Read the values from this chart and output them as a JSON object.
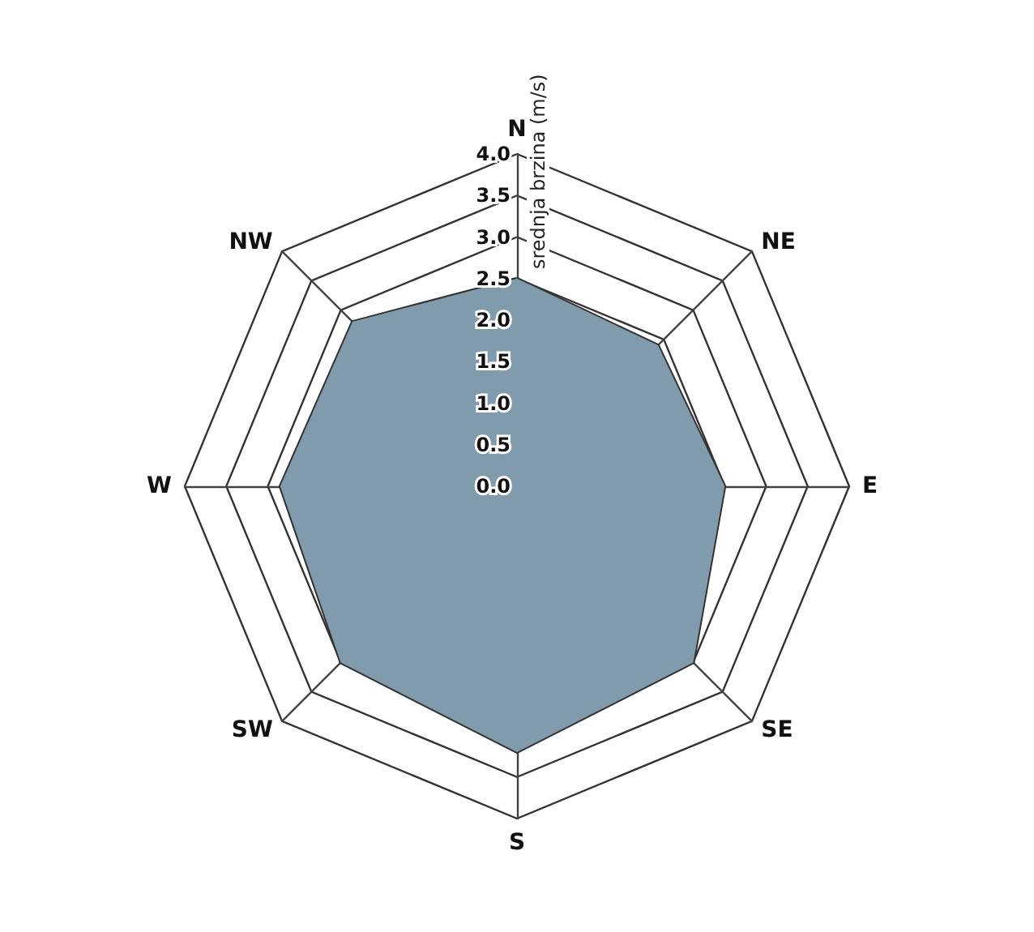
{
  "chart_data": {
    "type": "radar",
    "ylabel": "srednja brzina (m/s)",
    "categories": [
      "N",
      "NE",
      "E",
      "SE",
      "S",
      "SW",
      "W",
      "NW"
    ],
    "series": [
      {
        "color": "#7f9bac",
        "values": [
          2.5,
          2.4,
          2.5,
          3.0,
          3.2,
          3.0,
          2.85,
          2.8
        ]
      }
    ],
    "ylim": [
      0,
      4
    ],
    "yticks": [
      {
        "value": 0,
        "label": "0.0"
      },
      {
        "value": 0.5,
        "label": "0.5"
      },
      {
        "value": 1,
        "label": "1.0"
      },
      {
        "value": 1.5,
        "label": "1.5"
      },
      {
        "value": 2,
        "label": "2.0"
      },
      {
        "value": 2.5,
        "label": "2.5"
      },
      {
        "value": 3,
        "label": "3.0"
      },
      {
        "value": 3.5,
        "label": "3.5"
      },
      {
        "value": 4,
        "label": "4.0"
      }
    ],
    "grid": true,
    "marker": "none",
    "line_style": "solid"
  }
}
